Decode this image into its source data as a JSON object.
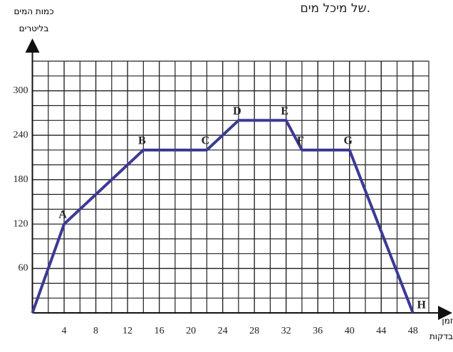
{
  "chart_data": {
    "type": "line",
    "header_text": "של מיכל מים.",
    "ylabel": "כמות המים בליטרים",
    "xlabel": "זמן בדקות",
    "x": [
      0,
      4,
      14,
      22,
      26,
      32,
      34,
      40,
      48
    ],
    "series": [
      {
        "color": "#3b3a94",
        "values": [
          0,
          120,
          220,
          220,
          260,
          260,
          220,
          220,
          0
        ]
      }
    ],
    "point_labels": [
      null,
      "A",
      "B",
      "C",
      "D",
      "E",
      "F",
      "G",
      "H"
    ],
    "xlim": [
      0,
      50
    ],
    "ylim": [
      0,
      340
    ],
    "xticks": [
      4,
      8,
      12,
      16,
      20,
      24,
      28,
      32,
      36,
      40,
      44,
      48
    ],
    "yticks": [
      60,
      120,
      180,
      240,
      300
    ],
    "grid": true
  }
}
